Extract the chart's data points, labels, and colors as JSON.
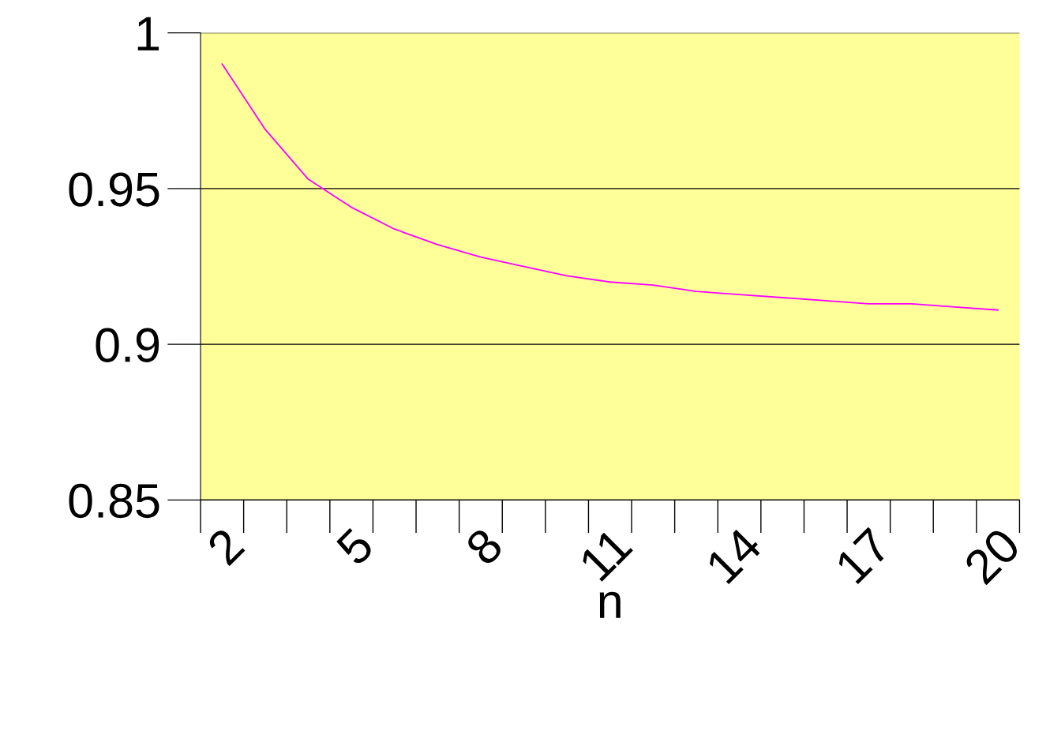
{
  "chart_data": {
    "type": "line",
    "xlabel": "n",
    "categories": [
      "2",
      null,
      null,
      "5",
      null,
      null,
      "8",
      null,
      null,
      "11",
      null,
      null,
      "14",
      null,
      null,
      "17",
      null,
      null,
      "20"
    ],
    "series": [
      {
        "color": "#ff00ff",
        "values": [
          0.99,
          0.969,
          0.953,
          0.944,
          0.937,
          0.932,
          0.928,
          0.925,
          0.922,
          0.92,
          0.919,
          0.917,
          0.916,
          0.915,
          0.914,
          0.913,
          0.913,
          0.912,
          0.911
        ]
      }
    ],
    "ylim": [
      0.85,
      1
    ],
    "yticks": [
      {
        "value": 0.85,
        "label": "0.85"
      },
      {
        "value": 0.9,
        "label": "0.9"
      },
      {
        "value": 0.95,
        "label": "0.95"
      },
      {
        "value": 1,
        "label": "1"
      }
    ],
    "grid": "y",
    "marker": "none",
    "line_style": "solid",
    "legend": false
  }
}
